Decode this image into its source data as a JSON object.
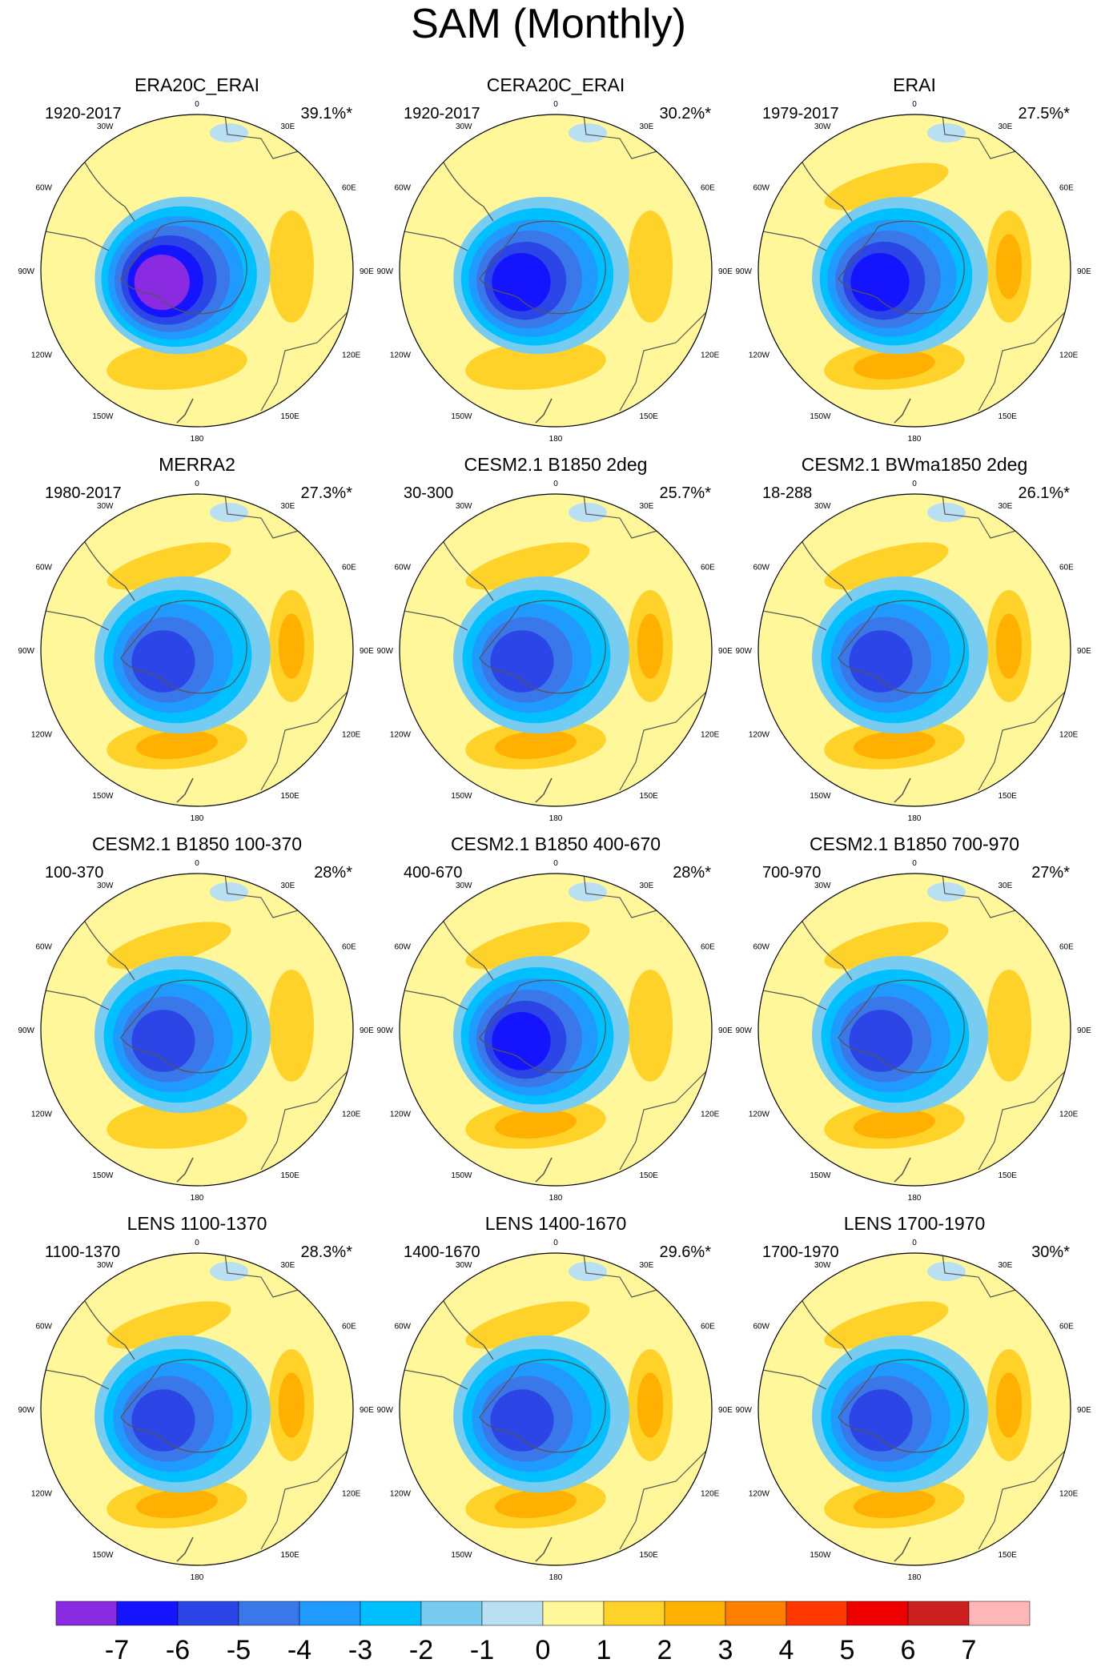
{
  "figure": {
    "title": "SAM (Monthly)"
  },
  "chart_data": {
    "type": "polar-contour-map",
    "projection": "south-polar-stereographic",
    "longitude_labels": [
      "0",
      "30E",
      "60E",
      "90E",
      "120E",
      "150E",
      "180",
      "150W",
      "120W",
      "90W",
      "60W",
      "30W"
    ],
    "panels": [
      {
        "title": "ERA20C_ERAI",
        "period": "1920-2017",
        "variance": "39.1%*",
        "min_value": -7,
        "max_value": 2,
        "east_lobe": 2,
        "pacific_lobe": 2,
        "atlantic_lobe": 1,
        "tilt": -10,
        "core_shift": 0.0
      },
      {
        "title": "CERA20C_ERAI",
        "period": "1920-2017",
        "variance": "30.2%*",
        "min_value": -6,
        "max_value": 2,
        "east_lobe": 2,
        "pacific_lobe": 2,
        "atlantic_lobe": 1,
        "tilt": -8,
        "core_shift": 0.0
      },
      {
        "title": "ERAI",
        "period": "1979-2017",
        "variance": "27.5%*",
        "min_value": -6,
        "max_value": 3,
        "east_lobe": 3,
        "pacific_lobe": 3,
        "atlantic_lobe": 2,
        "tilt": -5,
        "core_shift": 0.0
      },
      {
        "title": "MERRA2",
        "period": "1980-2017",
        "variance": "27.3%*",
        "min_value": -5,
        "max_value": 3,
        "east_lobe": 3,
        "pacific_lobe": 3,
        "atlantic_lobe": 2,
        "tilt": -5,
        "core_shift": 0.0
      },
      {
        "title": "CESM2.1 B1850 2deg",
        "period": "30-300",
        "variance": "25.7%*",
        "min_value": -5,
        "max_value": 3,
        "east_lobe": 3,
        "pacific_lobe": 3,
        "atlantic_lobe": 2,
        "tilt": -5,
        "core_shift": 0.0
      },
      {
        "title": "CESM2.1 BWma1850 2deg",
        "period": "18-288",
        "variance": "26.1%*",
        "min_value": -5,
        "max_value": 3,
        "east_lobe": 3,
        "pacific_lobe": 3,
        "atlantic_lobe": 2,
        "tilt": -5,
        "core_shift": 0.0
      },
      {
        "title": "CESM2.1 B1850 100-370",
        "period": "100-370",
        "variance": "28%*",
        "min_value": -5,
        "max_value": 2,
        "east_lobe": 2,
        "pacific_lobe": 2,
        "atlantic_lobe": 2,
        "tilt": 0,
        "core_shift": 0.0
      },
      {
        "title": "CESM2.1 B1850 400-670",
        "period": "400-670",
        "variance": "28%*",
        "min_value": -6,
        "max_value": 3,
        "east_lobe": 2,
        "pacific_lobe": 3,
        "atlantic_lobe": 2,
        "tilt": 0,
        "core_shift": 0.0
      },
      {
        "title": "CESM2.1 B1850 700-970",
        "period": "700-970",
        "variance": "27%*",
        "min_value": -5,
        "max_value": 3,
        "east_lobe": 2,
        "pacific_lobe": 3,
        "atlantic_lobe": 2,
        "tilt": 0,
        "core_shift": 0.0
      },
      {
        "title": "LENS 1100-1370",
        "period": "1100-1370",
        "variance": "28.3%*",
        "min_value": -5,
        "max_value": 3,
        "east_lobe": 3,
        "pacific_lobe": 3,
        "atlantic_lobe": 2,
        "tilt": -5,
        "core_shift": 0.0
      },
      {
        "title": "LENS 1400-1670",
        "period": "1400-1670",
        "variance": "29.6%*",
        "min_value": -5,
        "max_value": 3,
        "east_lobe": 3,
        "pacific_lobe": 3,
        "atlantic_lobe": 2,
        "tilt": -5,
        "core_shift": 0.0
      },
      {
        "title": "LENS 1700-1970",
        "period": "1700-1970",
        "variance": "30%*",
        "min_value": -5,
        "max_value": 3,
        "east_lobe": 3,
        "pacific_lobe": 3,
        "atlantic_lobe": 2,
        "tilt": -5,
        "core_shift": 0.0
      }
    ],
    "colorbar": {
      "ticks": [
        "-7",
        "-6",
        "-5",
        "-4",
        "-3",
        "-2",
        "-1",
        "0",
        "1",
        "2",
        "3",
        "4",
        "5",
        "6",
        "7"
      ],
      "colors": [
        "#8a2be2",
        "#1414ff",
        "#2b45e6",
        "#3a78ea",
        "#1f9bff",
        "#00c0ff",
        "#78ccf0",
        "#b8e0f2",
        "#fff799",
        "#ffd22a",
        "#ffb000",
        "#ff7f00",
        "#ff3800",
        "#ee0000",
        "#cc1f1f",
        "#ffb6b6"
      ]
    }
  }
}
